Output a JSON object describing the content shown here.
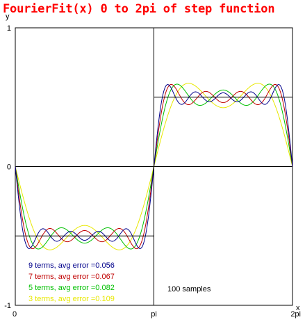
{
  "chart_data": {
    "type": "line",
    "title": "FourierFit(x) 0 to 2pi of step function",
    "title_color": "#ff0000",
    "xlabel": "x",
    "ylabel": "y",
    "xlim": [
      0,
      6.2832
    ],
    "ylim": [
      -1,
      1
    ],
    "x_ticks": [
      {
        "value": 0,
        "label": "0"
      },
      {
        "value": 3.1416,
        "label": "pi"
      },
      {
        "value": 6.2832,
        "label": "2pi"
      }
    ],
    "y_ticks": [
      {
        "value": 1,
        "label": "1"
      },
      {
        "value": 0,
        "label": "0"
      },
      {
        "value": -1,
        "label": "-1"
      }
    ],
    "grid": false,
    "zero_lines": true,
    "step_function": {
      "color": "#000000",
      "segments": [
        {
          "x": [
            0,
            3.1416
          ],
          "y": -0.5
        },
        {
          "x": [
            3.1416,
            6.2832
          ],
          "y": 0.5
        }
      ]
    },
    "series": [
      {
        "name": "9 terms",
        "terms": 9,
        "color": "#00008b",
        "avg_error": "0.056"
      },
      {
        "name": "7 terms",
        "terms": 7,
        "color": "#c00000",
        "avg_error": "0.067"
      },
      {
        "name": "5 terms",
        "terms": 5,
        "color": "#00c000",
        "avg_error": "0.082"
      },
      {
        "name": "3 terms",
        "terms": 3,
        "color": "#e8e800",
        "avg_error": "0.109"
      }
    ],
    "legend": [
      {
        "text": "9 terms,  avg error =0.056",
        "color": "#00008b"
      },
      {
        "text": "7 terms,  avg error =0.067",
        "color": "#c00000"
      },
      {
        "text": "5 terms,  avg error =0.082",
        "color": "#00c000"
      },
      {
        "text": "3 terms,  avg error =0.109",
        "color": "#e8e800"
      }
    ],
    "legend_position": "bottom-left",
    "annotation": "100 samples"
  }
}
